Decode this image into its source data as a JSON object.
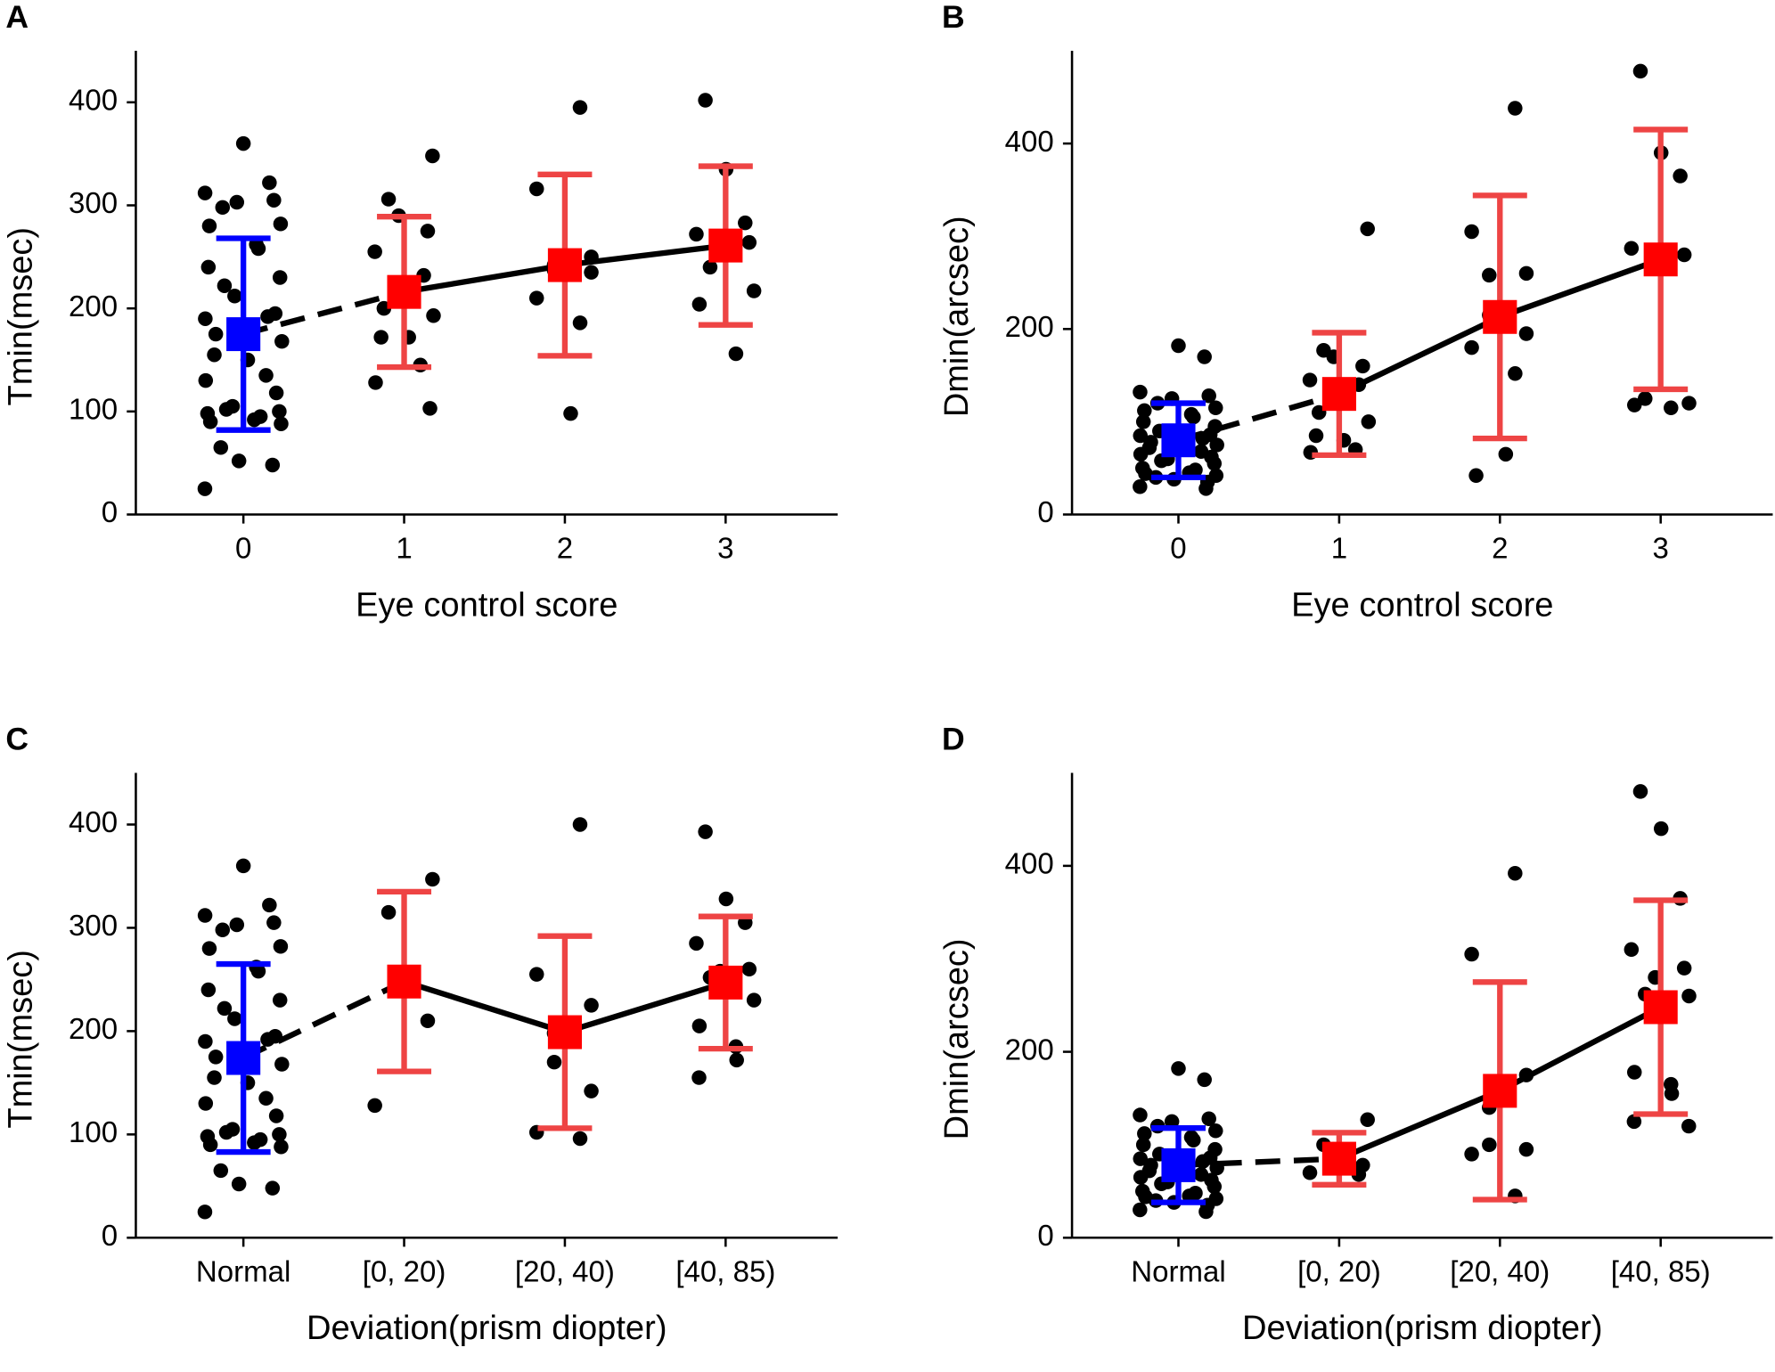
{
  "chart_data": [
    {
      "type": "strip",
      "panel": "A",
      "ylabel": "Tmin(msec)",
      "xlabel": "Eye control score",
      "categories": [
        "0",
        "1",
        "2",
        "3"
      ],
      "ylim": [
        0,
        450
      ],
      "yticks": [
        0,
        100,
        200,
        300,
        400
      ],
      "colors": [
        "#0000ff",
        "#ff0000",
        "#ff0000",
        "#ff0000"
      ],
      "errorbar_colors": [
        "#0000ff",
        "#ee4444",
        "#ee4444",
        "#ee4444"
      ],
      "point_color": "#000000",
      "dashed_first_segment": true,
      "means": [
        175,
        216,
        242,
        261
      ],
      "errors": [
        93,
        73,
        88,
        77
      ],
      "points": [
        [
          360,
          322,
          312,
          305,
          303,
          298,
          282,
          280,
          262,
          258,
          240,
          230,
          222,
          212,
          195,
          190,
          192,
          183,
          175,
          168,
          155,
          150,
          135,
          130,
          118,
          105,
          102,
          100,
          98,
          95,
          92,
          90,
          88,
          65,
          52,
          48,
          25
        ],
        [
          348,
          306,
          290,
          275,
          255,
          232,
          225,
          200,
          193,
          172,
          172,
          145,
          128,
          103
        ],
        [
          395,
          316,
          250,
          242,
          237,
          235,
          210,
          186,
          98
        ],
        [
          402,
          335,
          283,
          272,
          264,
          262,
          240,
          217,
          204,
          156
        ]
      ]
    },
    {
      "type": "strip",
      "panel": "B",
      "ylabel": "Dmin(arcsec)",
      "xlabel": "Eye control score",
      "categories": [
        "0",
        "1",
        "2",
        "3"
      ],
      "ylim": [
        0,
        500
      ],
      "yticks": [
        0,
        200,
        400
      ],
      "colors": [
        "#0000ff",
        "#ff0000",
        "#ff0000",
        "#ff0000"
      ],
      "errorbar_colors": [
        "#0000ff",
        "#ee4444",
        "#ee4444",
        "#ee4444"
      ],
      "point_color": "#000000",
      "dashed_first_segment": true,
      "means": [
        80,
        130,
        213,
        275
      ],
      "errors": [
        40,
        66,
        131,
        140
      ],
      "points": [
        [
          182,
          170,
          132,
          128,
          125,
          120,
          115,
          112,
          108,
          105,
          100,
          95,
          90,
          88,
          86,
          85,
          82,
          80,
          78,
          75,
          72,
          70,
          68,
          65,
          62,
          60,
          58,
          55,
          50,
          48,
          45,
          44,
          42,
          40,
          38,
          35,
          30,
          28
        ],
        [
          308,
          177,
          170,
          160,
          145,
          140,
          130,
          110,
          100,
          85,
          80,
          70,
          67
        ],
        [
          438,
          305,
          260,
          258,
          215,
          195,
          180,
          152,
          65,
          42
        ],
        [
          478,
          390,
          365,
          287,
          280,
          277,
          125,
          120,
          118,
          115
        ]
      ]
    },
    {
      "type": "strip",
      "panel": "C",
      "ylabel": "Tmin(msec)",
      "xlabel": "Deviation(prism diopter)",
      "categories": [
        "Normal",
        "[0, 20)",
        "[20, 40)",
        "[40, 85)"
      ],
      "ylim": [
        0,
        450
      ],
      "yticks": [
        0,
        100,
        200,
        300,
        400
      ],
      "colors": [
        "#0000ff",
        "#ff0000",
        "#ff0000",
        "#ff0000"
      ],
      "errorbar_colors": [
        "#0000ff",
        "#ee4444",
        "#ee4444",
        "#ee4444"
      ],
      "point_color": "#000000",
      "dashed_first_segment": true,
      "means": [
        174,
        248,
        199,
        247
      ],
      "errors": [
        91,
        87,
        93,
        64
      ],
      "points": [
        [
          360,
          322,
          312,
          305,
          303,
          298,
          282,
          280,
          262,
          258,
          240,
          230,
          222,
          212,
          195,
          190,
          192,
          183,
          175,
          168,
          155,
          150,
          135,
          130,
          118,
          105,
          102,
          100,
          98,
          95,
          92,
          90,
          88,
          65,
          52,
          48,
          25
        ],
        [
          347,
          315,
          250,
          210,
          128
        ],
        [
          400,
          255,
          225,
          198,
          170,
          142,
          102,
          96
        ],
        [
          393,
          328,
          305,
          285,
          260,
          258,
          252,
          230,
          205,
          185,
          172,
          155
        ]
      ]
    },
    {
      "type": "strip",
      "panel": "D",
      "ylabel": "Dmin(arcsec)",
      "xlabel": "Deviation(prism diopter)",
      "categories": [
        "Normal",
        "[0, 20)",
        "[20, 40)",
        "[40, 85)"
      ],
      "ylim": [
        0,
        500
      ],
      "yticks": [
        0,
        200,
        400
      ],
      "colors": [
        "#0000ff",
        "#ff0000",
        "#ff0000",
        "#ff0000"
      ],
      "errorbar_colors": [
        "#0000ff",
        "#ee4444",
        "#ee4444",
        "#ee4444"
      ],
      "point_color": "#000000",
      "dashed_first_segment": true,
      "means": [
        78,
        85,
        158,
        248
      ],
      "errors": [
        40,
        28,
        117,
        115
      ],
      "points": [
        [
          182,
          170,
          132,
          128,
          125,
          120,
          115,
          112,
          108,
          105,
          100,
          95,
          90,
          88,
          86,
          85,
          82,
          80,
          78,
          75,
          72,
          70,
          68,
          65,
          62,
          60,
          58,
          55,
          50,
          48,
          45,
          44,
          42,
          40,
          38,
          35,
          30,
          28
        ],
        [
          127,
          100,
          95,
          78,
          70,
          68
        ],
        [
          392,
          305,
          175,
          140,
          100,
          95,
          90,
          45
        ],
        [
          480,
          440,
          365,
          310,
          290,
          280,
          262,
          260,
          178,
          165,
          155,
          125,
          120
        ]
      ]
    }
  ]
}
